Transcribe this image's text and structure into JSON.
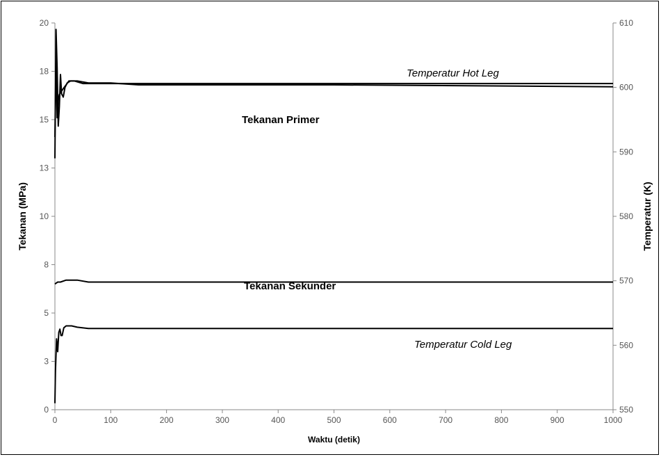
{
  "chart_data": {
    "type": "line",
    "title": "",
    "xlabel": "Waktu (detik)",
    "ylabel": "Tekanan (MPa)",
    "y2label": "Temperatur (K)",
    "xlim": [
      0,
      1000
    ],
    "ylim": [
      0,
      20
    ],
    "y2lim": [
      550,
      610
    ],
    "x_ticks": [
      "0",
      "100",
      "200",
      "300",
      "400",
      "500",
      "600",
      "700",
      "800",
      "900",
      "1000"
    ],
    "y_ticks": [
      "0",
      "3",
      "5",
      "8",
      "10",
      "13",
      "15",
      "18",
      "20"
    ],
    "y2_ticks": [
      "550",
      "560",
      "570",
      "580",
      "590",
      "600",
      "610"
    ],
    "grid": false,
    "series": [
      {
        "name": "Temperatur Hot Leg",
        "axis": "right",
        "label_style": "italic",
        "x": [
          0,
          2,
          4,
          6,
          8,
          10,
          12,
          15,
          18,
          22,
          28,
          35,
          50,
          100,
          200,
          500,
          1000
        ],
        "values": [
          589,
          609,
          603,
          594,
          597,
          602,
          599,
          598.5,
          600,
          600.7,
          601,
          601,
          600.6,
          600.6,
          600.6,
          600.6,
          600.6
        ]
      },
      {
        "name": "Tekanan Primer",
        "axis": "left",
        "label_style": "bold",
        "x": [
          0,
          2,
          4,
          6,
          8,
          10,
          15,
          20,
          25,
          30,
          40,
          60,
          100,
          150,
          300,
          500,
          1000
        ],
        "values": [
          14.1,
          18.3,
          15.1,
          16.0,
          16.3,
          16.4,
          16.6,
          16.8,
          17.0,
          17.0,
          17.0,
          16.9,
          16.9,
          16.8,
          16.8,
          16.8,
          16.7
        ]
      },
      {
        "name": "Tekanan Sekunder",
        "axis": "left",
        "label_style": "bold",
        "x": [
          0,
          5,
          10,
          20,
          30,
          40,
          60,
          100,
          500,
          1000
        ],
        "values": [
          6.5,
          6.6,
          6.6,
          6.7,
          6.7,
          6.7,
          6.6,
          6.6,
          6.6,
          6.6
        ]
      },
      {
        "name": "Temperatur Cold Leg",
        "axis": "right",
        "label_style": "italic",
        "x": [
          0,
          1,
          3,
          5,
          7,
          9,
          11,
          13,
          16,
          20,
          30,
          40,
          60,
          100,
          500,
          1000
        ],
        "values": [
          551,
          556,
          561,
          559,
          562,
          562.5,
          561.5,
          561.5,
          562.7,
          563,
          563,
          562.8,
          562.6,
          562.6,
          562.6,
          562.6
        ]
      }
    ]
  }
}
